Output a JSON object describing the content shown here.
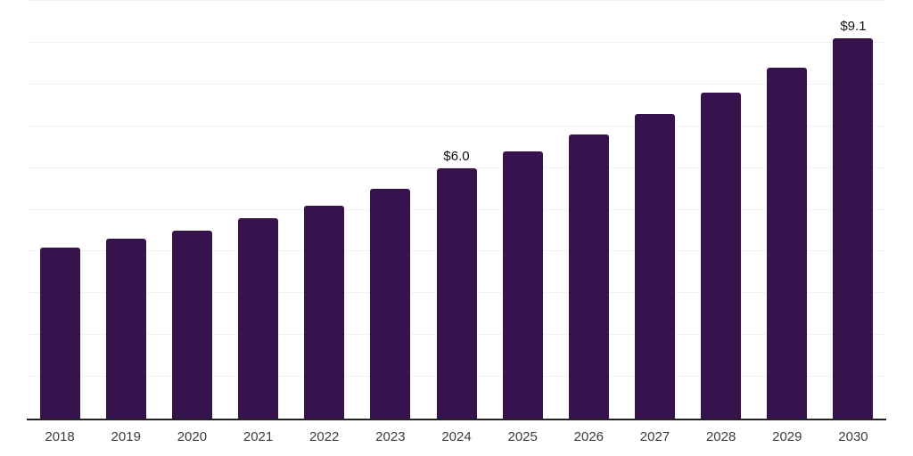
{
  "chart_data": {
    "type": "bar",
    "title": "",
    "xlabel": "",
    "ylabel": "",
    "categories": [
      "2018",
      "2019",
      "2020",
      "2021",
      "2022",
      "2023",
      "2024",
      "2025",
      "2026",
      "2027",
      "2028",
      "2029",
      "2030"
    ],
    "values": [
      4.1,
      4.3,
      4.5,
      4.8,
      5.1,
      5.5,
      6.0,
      6.4,
      6.8,
      7.3,
      7.8,
      8.4,
      9.1
    ],
    "value_labels": {
      "2024": "$6.0",
      "2030": "$9.1"
    },
    "ylim": [
      0,
      10
    ],
    "gridline_step": 1,
    "grid": "horizontal",
    "legend_position": "none",
    "bar_color": "#36134d",
    "axis_color": "#222222",
    "gridline_color": "#f2f2f2",
    "tick_label_color": "#3c3c3c",
    "value_label_color": "#101010",
    "background_color": "#ffffff"
  }
}
